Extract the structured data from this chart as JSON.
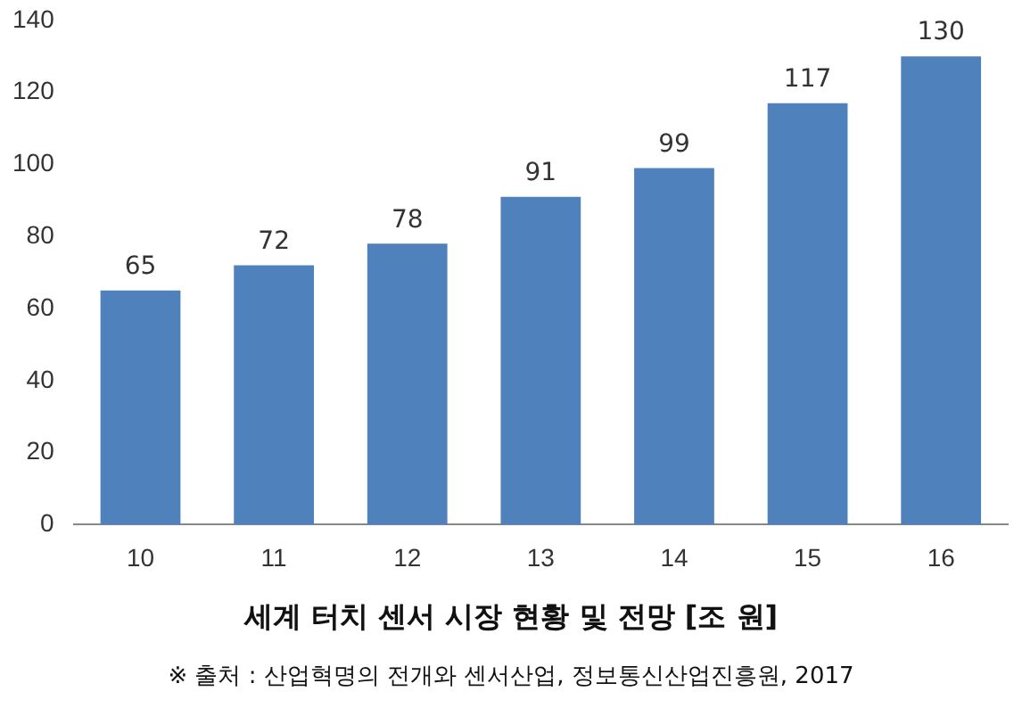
{
  "chart_data": {
    "type": "bar",
    "title": "세계 터치 센서 시장 현황 및 전망 [조 원]",
    "annotations": [
      "※ 출처 : 산업혁명의 전개와 센서산업, 정보통신산업진흥원, 2017"
    ],
    "categories": [
      "10",
      "11",
      "12",
      "13",
      "14",
      "15",
      "16"
    ],
    "values": [
      65,
      72,
      78,
      91,
      99,
      117,
      130
    ],
    "color": "#4f81bd",
    "ylim": [
      0,
      140
    ],
    "yticks": [
      0,
      20,
      40,
      60,
      80,
      100,
      120,
      140
    ],
    "grid": false,
    "legend": false,
    "data_labels": true
  }
}
